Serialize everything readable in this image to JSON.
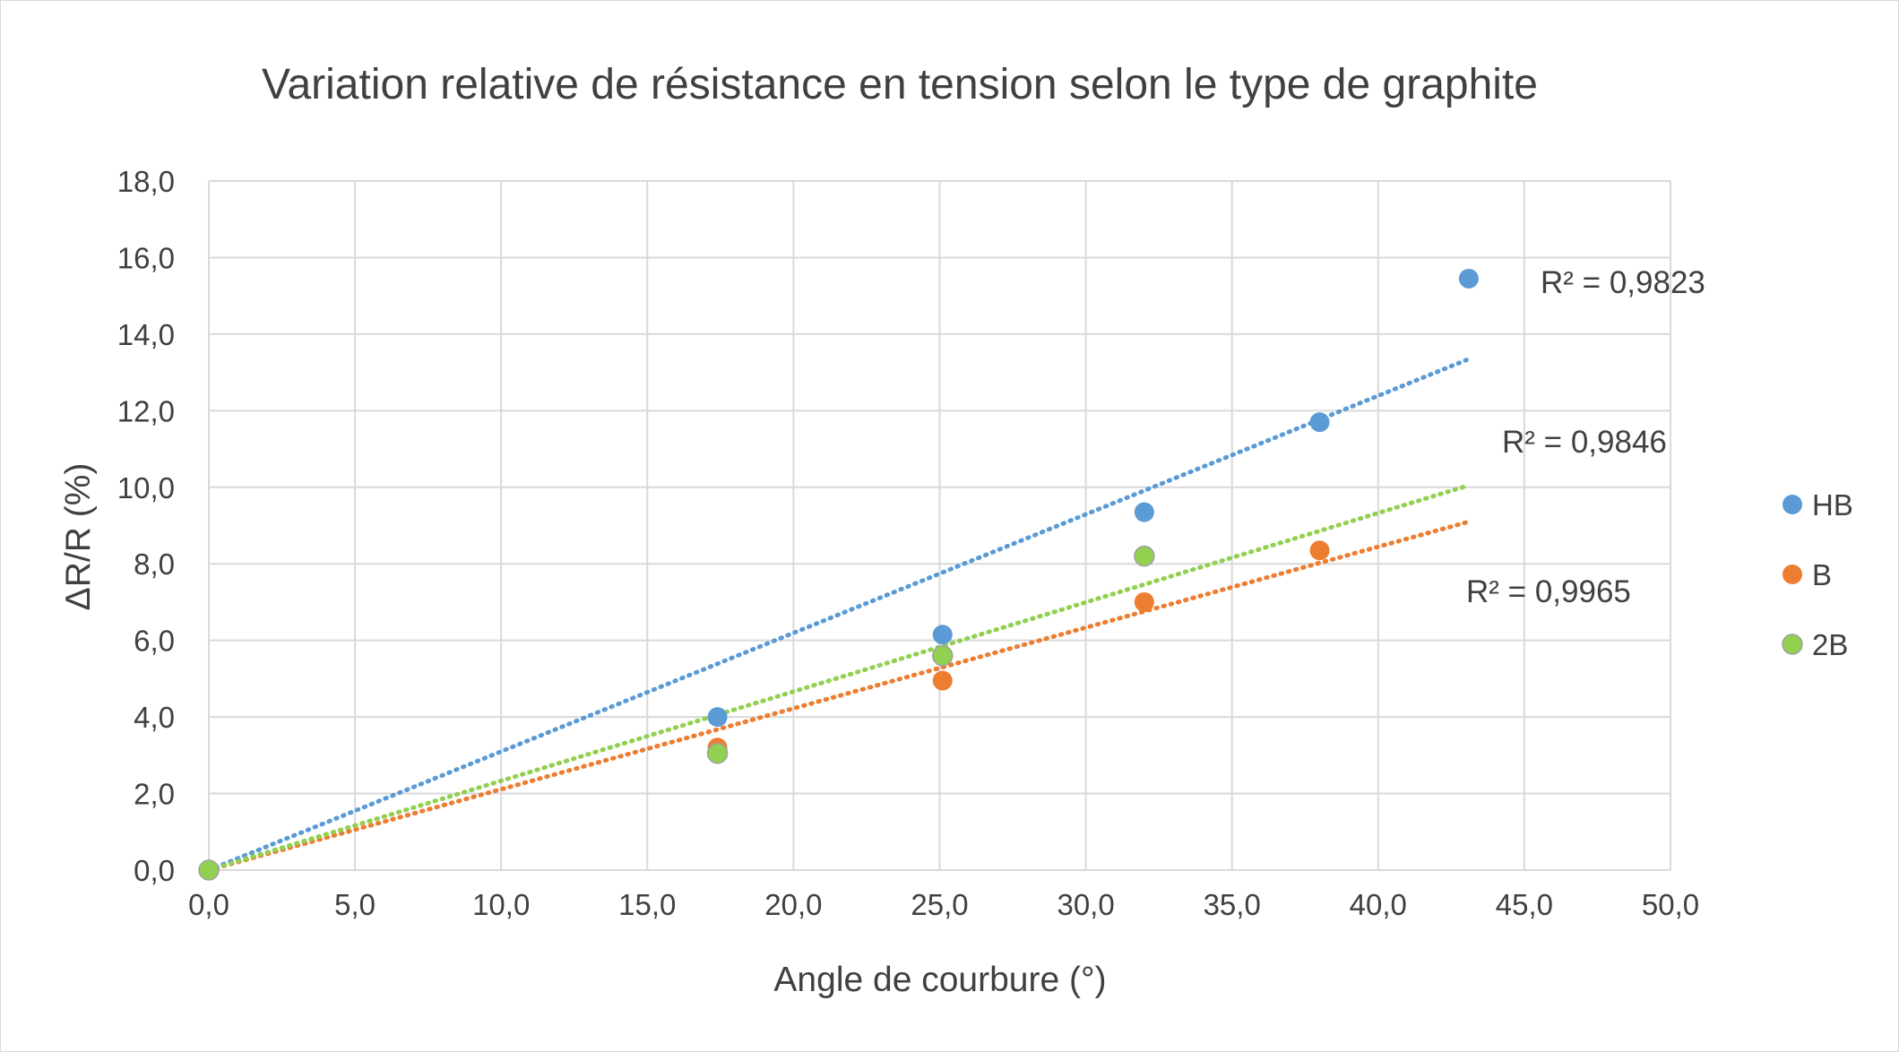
{
  "chart_data": {
    "type": "scatter",
    "title": "Variation relative de résistance en tension selon le type de graphite",
    "xlabel": "Angle de courbure (°)",
    "ylabel": "ΔR/R (%)",
    "xlim": [
      0,
      50
    ],
    "ylim": [
      0,
      18
    ],
    "x_ticks": [
      "0,0",
      "5,0",
      "10,0",
      "15,0",
      "20,0",
      "25,0",
      "30,0",
      "35,0",
      "40,0",
      "45,0",
      "50,0"
    ],
    "y_ticks": [
      "0,0",
      "2,0",
      "4,0",
      "6,0",
      "8,0",
      "10,0",
      "12,0",
      "14,0",
      "16,0",
      "18,0"
    ],
    "grid": true,
    "legend_position": "right",
    "series": [
      {
        "name": "HB",
        "color": "#5b9bd5",
        "points": [
          [
            0,
            0
          ],
          [
            17.4,
            4.0
          ],
          [
            25.1,
            6.15
          ],
          [
            32.0,
            9.35
          ],
          [
            38.0,
            11.7
          ],
          [
            43.1,
            15.45
          ]
        ],
        "trendline": {
          "x": [
            0,
            43.1
          ],
          "y": [
            0,
            13.35
          ]
        },
        "r2_label": "R² = 0,9823"
      },
      {
        "name": "B",
        "color": "#ed7d31",
        "points": [
          [
            0,
            0
          ],
          [
            17.4,
            3.2
          ],
          [
            25.1,
            4.95
          ],
          [
            32.0,
            7.0
          ],
          [
            38.0,
            8.35
          ]
        ],
        "trendline": {
          "x": [
            0,
            43.1
          ],
          "y": [
            0,
            9.1
          ]
        },
        "r2_label": "R² = 0,9965"
      },
      {
        "name": "2B",
        "color": "#92d050",
        "points": [
          [
            0,
            0
          ],
          [
            17.4,
            3.05
          ],
          [
            25.1,
            5.6
          ],
          [
            32.0,
            8.2
          ]
        ],
        "trendline": {
          "x": [
            0,
            43.1
          ],
          "y": [
            0,
            10.05
          ]
        },
        "r2_label": "R² = 0,9846"
      }
    ]
  }
}
